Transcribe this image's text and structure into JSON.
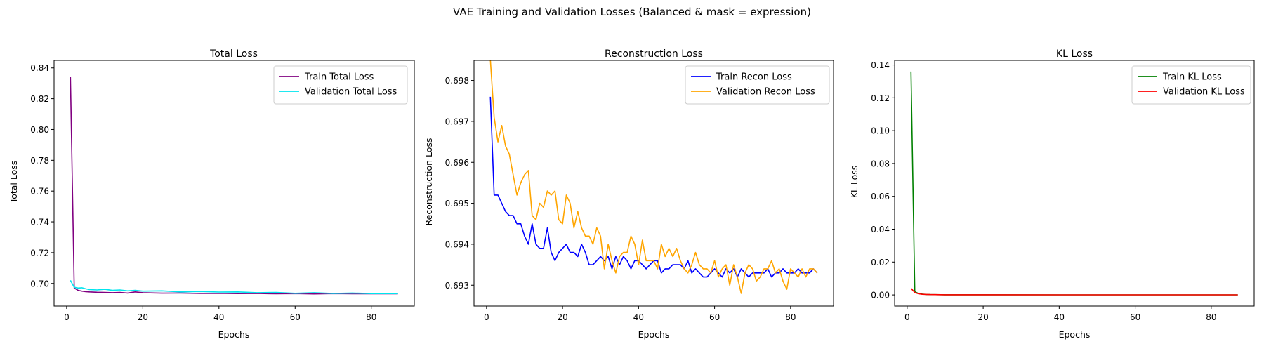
{
  "suptitle": "VAE Training and Validation Losses (Balanced & mask = expression)",
  "chart_data": [
    {
      "type": "line",
      "title": "Total Loss",
      "xlabel": "Epochs",
      "ylabel": "Total Loss",
      "xlim": [
        -3.3,
        91.3
      ],
      "ylim": [
        0.6853,
        0.8449
      ],
      "xticks": [
        0,
        20,
        40,
        60,
        80
      ],
      "yticks": [
        0.7,
        0.72,
        0.74,
        0.76,
        0.78,
        0.8,
        0.82,
        0.84
      ],
      "ytick_labels": [
        "0.70",
        "0.72",
        "0.74",
        "0.76",
        "0.78",
        "0.80",
        "0.82",
        "0.84"
      ],
      "legend": "top-right",
      "grid": false,
      "series": [
        {
          "name": "Train Total Loss",
          "color": "#800080",
          "x": [
            1,
            2,
            3,
            4,
            5,
            6,
            8,
            10,
            12,
            14,
            16,
            18,
            20,
            25,
            30,
            35,
            40,
            45,
            50,
            55,
            60,
            65,
            70,
            75,
            80,
            87
          ],
          "y": [
            0.834,
            0.697,
            0.6955,
            0.695,
            0.6947,
            0.6945,
            0.6943,
            0.6942,
            0.694,
            0.6942,
            0.6938,
            0.6945,
            0.694,
            0.6937,
            0.6938,
            0.6935,
            0.6936,
            0.6934,
            0.6935,
            0.6933,
            0.6934,
            0.6932,
            0.6934,
            0.6933,
            0.6933,
            0.6933
          ]
        },
        {
          "name": "Validation Total Loss",
          "color": "#00e5ee",
          "x": [
            1,
            2,
            3,
            4,
            5,
            6,
            8,
            10,
            12,
            14,
            16,
            18,
            20,
            25,
            30,
            35,
            40,
            45,
            50,
            55,
            60,
            65,
            70,
            75,
            80,
            87
          ],
          "y": [
            0.702,
            0.6975,
            0.697,
            0.6972,
            0.6965,
            0.696,
            0.6958,
            0.6962,
            0.6955,
            0.6958,
            0.6952,
            0.6955,
            0.695,
            0.6952,
            0.6945,
            0.6948,
            0.6944,
            0.6945,
            0.694,
            0.6942,
            0.6936,
            0.694,
            0.6935,
            0.6938,
            0.6934,
            0.6934
          ]
        }
      ]
    },
    {
      "type": "line",
      "title": "Reconstruction Loss",
      "xlabel": "Epochs",
      "ylabel": "Reconstruction Loss",
      "xlim": [
        -3.3,
        91.3
      ],
      "ylim": [
        0.69249,
        0.69849
      ],
      "xticks": [
        0,
        20,
        40,
        60,
        80
      ],
      "yticks": [
        0.693,
        0.694,
        0.695,
        0.696,
        0.697,
        0.698
      ],
      "ytick_labels": [
        "0.693",
        "0.694",
        "0.695",
        "0.696",
        "0.697",
        "0.698"
      ],
      "legend": "top-right",
      "grid": false,
      "series": [
        {
          "name": "Train Recon Loss",
          "color": "#0000ff",
          "x": [
            1,
            2,
            3,
            4,
            5,
            6,
            7,
            8,
            9,
            10,
            11,
            12,
            13,
            14,
            15,
            16,
            17,
            18,
            19,
            20,
            21,
            22,
            23,
            24,
            25,
            26,
            27,
            28,
            29,
            30,
            31,
            32,
            33,
            34,
            35,
            36,
            37,
            38,
            39,
            40,
            41,
            42,
            43,
            44,
            45,
            46,
            47,
            48,
            49,
            50,
            51,
            52,
            53,
            54,
            55,
            56,
            57,
            58,
            59,
            60,
            61,
            62,
            63,
            64,
            65,
            66,
            67,
            68,
            69,
            70,
            71,
            72,
            73,
            74,
            75,
            76,
            77,
            78,
            79,
            80,
            81,
            82,
            83,
            84,
            85,
            86,
            87
          ],
          "y": [
            0.6976,
            0.6952,
            0.6952,
            0.695,
            0.6948,
            0.6947,
            0.6947,
            0.6945,
            0.6945,
            0.6942,
            0.694,
            0.6945,
            0.694,
            0.6939,
            0.6939,
            0.6944,
            0.6938,
            0.6936,
            0.6938,
            0.6939,
            0.694,
            0.6938,
            0.6938,
            0.6937,
            0.694,
            0.6938,
            0.6935,
            0.6935,
            0.6936,
            0.6937,
            0.6936,
            0.6937,
            0.6934,
            0.6937,
            0.6935,
            0.6937,
            0.6936,
            0.6934,
            0.6936,
            0.6936,
            0.6935,
            0.6934,
            0.6935,
            0.6936,
            0.6936,
            0.6933,
            0.6934,
            0.6934,
            0.6935,
            0.6935,
            0.6935,
            0.6934,
            0.6936,
            0.6933,
            0.6934,
            0.6933,
            0.6932,
            0.6932,
            0.6933,
            0.6934,
            0.6933,
            0.6932,
            0.6934,
            0.6933,
            0.6934,
            0.6932,
            0.6934,
            0.6933,
            0.6932,
            0.6933,
            0.6933,
            0.6933,
            0.6933,
            0.6934,
            0.6932,
            0.6933,
            0.6933,
            0.6934,
            0.6933,
            0.6933,
            0.6933,
            0.6934,
            0.6933,
            0.6933,
            0.6933,
            0.6934,
            0.6933
          ]
        },
        {
          "name": "Validation Recon Loss",
          "color": "#ffa500",
          "x": [
            1,
            2,
            3,
            4,
            5,
            6,
            7,
            8,
            9,
            10,
            11,
            12,
            13,
            14,
            15,
            16,
            17,
            18,
            19,
            20,
            21,
            22,
            23,
            24,
            25,
            26,
            27,
            28,
            29,
            30,
            31,
            32,
            33,
            34,
            35,
            36,
            37,
            38,
            39,
            40,
            41,
            42,
            43,
            44,
            45,
            46,
            47,
            48,
            49,
            50,
            51,
            52,
            53,
            54,
            55,
            56,
            57,
            58,
            59,
            60,
            61,
            62,
            63,
            64,
            65,
            66,
            67,
            68,
            69,
            70,
            71,
            72,
            73,
            74,
            75,
            76,
            77,
            78,
            79,
            80,
            81,
            82,
            83,
            84,
            85,
            86,
            87
          ],
          "y": [
            0.6985,
            0.6971,
            0.6965,
            0.6969,
            0.6964,
            0.6962,
            0.6957,
            0.6952,
            0.6955,
            0.6957,
            0.6958,
            0.6947,
            0.6946,
            0.695,
            0.6949,
            0.6953,
            0.6952,
            0.6953,
            0.6946,
            0.6945,
            0.6952,
            0.695,
            0.6944,
            0.6948,
            0.6944,
            0.6942,
            0.6942,
            0.694,
            0.6944,
            0.6942,
            0.6934,
            0.694,
            0.6936,
            0.6933,
            0.6937,
            0.6938,
            0.6938,
            0.6942,
            0.694,
            0.6935,
            0.6941,
            0.6936,
            0.6936,
            0.6936,
            0.6934,
            0.694,
            0.6937,
            0.6939,
            0.6937,
            0.6939,
            0.6936,
            0.6934,
            0.6933,
            0.6935,
            0.6938,
            0.6935,
            0.6934,
            0.6934,
            0.6933,
            0.6936,
            0.6932,
            0.6934,
            0.6935,
            0.693,
            0.6935,
            0.6932,
            0.6928,
            0.6933,
            0.6935,
            0.6934,
            0.6931,
            0.6932,
            0.6934,
            0.6934,
            0.6936,
            0.6933,
            0.6934,
            0.6931,
            0.6929,
            0.6934,
            0.6933,
            0.6932,
            0.6934,
            0.6932,
            0.6934,
            0.6934,
            0.6933
          ]
        }
      ]
    },
    {
      "type": "line",
      "title": "KL Loss",
      "xlabel": "Epochs",
      "ylabel": "KL Loss",
      "xlim": [
        -3.3,
        91.3
      ],
      "ylim": [
        -0.0068,
        0.1428
      ],
      "xticks": [
        0,
        20,
        40,
        60,
        80
      ],
      "yticks": [
        0.0,
        0.02,
        0.04,
        0.06,
        0.08,
        0.1,
        0.12,
        0.14
      ],
      "ytick_labels": [
        "0.00",
        "0.02",
        "0.04",
        "0.06",
        "0.08",
        "0.10",
        "0.12",
        "0.14"
      ],
      "legend": "top-right",
      "grid": false,
      "series": [
        {
          "name": "Train KL Loss",
          "color": "#008000",
          "x": [
            1,
            2,
            3,
            4,
            5,
            6,
            10,
            20,
            40,
            60,
            87
          ],
          "y": [
            0.136,
            0.002,
            0.0008,
            0.0005,
            0.0003,
            0.0002,
            0.0001,
            0.0001,
            5e-05,
            3e-05,
            2e-05
          ]
        },
        {
          "name": "Validation KL Loss",
          "color": "#ff0000",
          "x": [
            1,
            2,
            3,
            4,
            5,
            6,
            10,
            20,
            40,
            60,
            87
          ],
          "y": [
            0.004,
            0.0015,
            0.0007,
            0.0004,
            0.0003,
            0.0002,
            0.0001,
            0.0001,
            5e-05,
            3e-05,
            2e-05
          ]
        }
      ]
    }
  ]
}
